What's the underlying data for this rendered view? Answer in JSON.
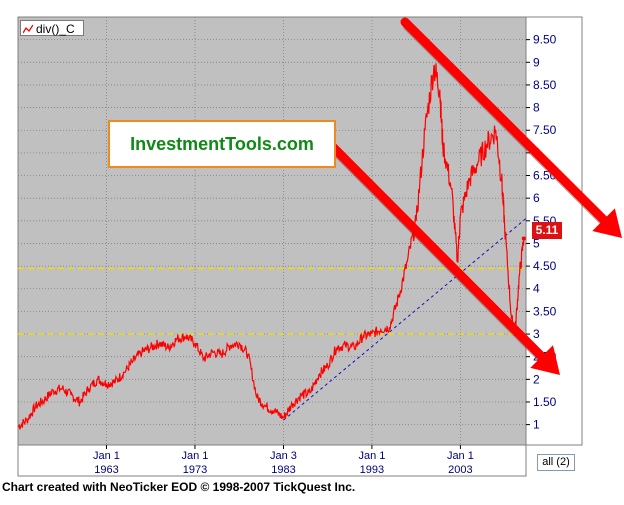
{
  "chart_data": {
    "type": "line",
    "title": "",
    "legend": {
      "label": "div()_C"
    },
    "xlabel": "",
    "ylabel": "",
    "x_tick_labels": [
      {
        "top": "Jan 1",
        "bottom": "1963",
        "date": "1963-01-01"
      },
      {
        "top": "Jan 1",
        "bottom": "1973",
        "date": "1973-01-01"
      },
      {
        "top": "Jan 3",
        "bottom": "1983",
        "date": "1983-01-03"
      },
      {
        "top": "Jan 1",
        "bottom": "1993",
        "date": "1993-01-01"
      },
      {
        "top": "Jan 1",
        "bottom": "2003",
        "date": "2003-01-01"
      }
    ],
    "x_range": [
      "1953-01-01",
      "2010-06-01"
    ],
    "y_ticks": [
      "1",
      "1.50",
      "2",
      "2.50",
      "3",
      "3.50",
      "4",
      "4.50",
      "5",
      "5.50",
      "6",
      "6.50",
      "7",
      "7.50",
      "8",
      "8.50",
      "9",
      "9.50"
    ],
    "ylim": [
      0.55,
      10.0
    ],
    "grid": true,
    "series": [
      {
        "name": "div()_C",
        "color": "#ff0000",
        "points": [
          [
            "1953-01-01",
            0.95
          ],
          [
            "1954-01-01",
            1.1
          ],
          [
            "1955-01-01",
            1.4
          ],
          [
            "1956-01-01",
            1.55
          ],
          [
            "1957-01-01",
            1.75
          ],
          [
            "1958-01-01",
            1.8
          ],
          [
            "1959-01-01",
            1.65
          ],
          [
            "1960-01-01",
            1.5
          ],
          [
            "1961-01-01",
            1.8
          ],
          [
            "1962-01-01",
            2.0
          ],
          [
            "1963-01-01",
            1.9
          ],
          [
            "1964-01-01",
            1.95
          ],
          [
            "1965-01-01",
            2.15
          ],
          [
            "1966-01-01",
            2.4
          ],
          [
            "1967-01-01",
            2.6
          ],
          [
            "1968-01-01",
            2.7
          ],
          [
            "1969-01-01",
            2.8
          ],
          [
            "1970-01-01",
            2.7
          ],
          [
            "1971-01-01",
            2.9
          ],
          [
            "1972-01-01",
            2.95
          ],
          [
            "1973-01-01",
            2.8
          ],
          [
            "1974-01-01",
            2.45
          ],
          [
            "1975-01-01",
            2.6
          ],
          [
            "1976-01-01",
            2.55
          ],
          [
            "1977-01-01",
            2.75
          ],
          [
            "1978-01-01",
            2.8
          ],
          [
            "1979-01-01",
            2.55
          ],
          [
            "1980-01-01",
            1.6
          ],
          [
            "1981-01-01",
            1.4
          ],
          [
            "1982-01-01",
            1.3
          ],
          [
            "1983-01-03",
            1.15
          ],
          [
            "1984-01-01",
            1.45
          ],
          [
            "1985-01-01",
            1.65
          ],
          [
            "1986-01-01",
            1.7
          ],
          [
            "1987-01-01",
            2.1
          ],
          [
            "1988-01-01",
            2.3
          ],
          [
            "1989-01-01",
            2.7
          ],
          [
            "1990-01-01",
            2.75
          ],
          [
            "1991-01-01",
            2.7
          ],
          [
            "1992-01-01",
            2.95
          ],
          [
            "1993-01-01",
            3.0
          ],
          [
            "1994-01-01",
            3.1
          ],
          [
            "1995-01-01",
            3.15
          ],
          [
            "1996-01-01",
            3.8
          ],
          [
            "1997-01-01",
            4.6
          ],
          [
            "1998-01-01",
            5.5
          ],
          [
            "1999-01-01",
            7.5
          ],
          [
            "2000-01-01",
            8.9
          ],
          [
            "2000-09-01",
            8.4
          ],
          [
            "2001-01-01",
            7.2
          ],
          [
            "2002-01-01",
            6.2
          ],
          [
            "2002-09-01",
            4.6
          ],
          [
            "2003-01-01",
            5.6
          ],
          [
            "2004-01-01",
            6.4
          ],
          [
            "2005-01-01",
            6.8
          ],
          [
            "2006-01-01",
            7.2
          ],
          [
            "2007-01-01",
            7.5
          ],
          [
            "2007-09-01",
            6.4
          ],
          [
            "2008-01-01",
            5.4
          ],
          [
            "2008-10-01",
            3.4
          ],
          [
            "2009-03-01",
            3.0
          ],
          [
            "2009-09-01",
            4.3
          ],
          [
            "2010-03-01",
            5.11
          ]
        ]
      }
    ],
    "reference_lines": [
      {
        "style": "dashed",
        "color": "#f0e000",
        "y": 4.45
      },
      {
        "style": "dashed",
        "color": "#f0e000",
        "y": 3.0
      }
    ],
    "trend_line": {
      "color": "#1010c0",
      "style": "dashed",
      "from": [
        "1983-01-03",
        1.1
      ],
      "to": [
        "2010-06-01",
        5.55
      ]
    },
    "last_value": "5.11",
    "annotations": [
      "InvestmentTools.com"
    ]
  },
  "ui": {
    "range_button": "all (2)",
    "credit": "Chart created with NeoTicker EOD © 1998-2007 TickQuest Inc."
  },
  "colors": {
    "plot_background": "#c0c0c0",
    "axis_label_color": "#000080",
    "arrow_color": "#ff0000",
    "line_color": "#ff0000",
    "badge_color": "#e01010"
  }
}
